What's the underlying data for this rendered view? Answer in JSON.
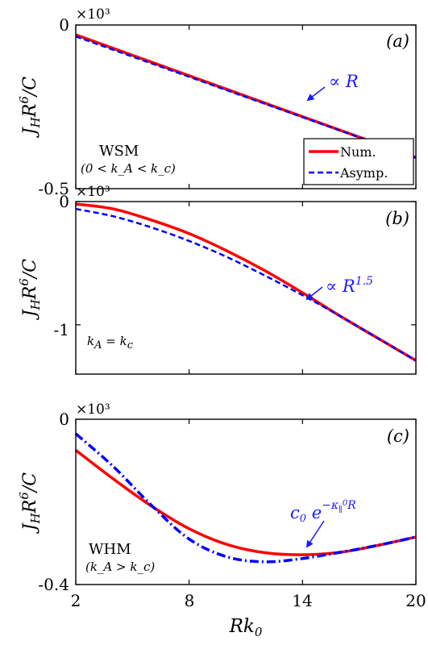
{
  "chart_data": [
    {
      "type": "line",
      "panel_label": "(a)",
      "ylabel": "J_H R^6 / C",
      "multiplier": "×10³",
      "ylim": [
        -0.5,
        0
      ],
      "yticks": [
        0,
        -0.5
      ],
      "ytick_labels": [
        "0",
        "-0.5"
      ],
      "xlim": [
        2,
        20
      ],
      "regime_label": "WSM",
      "regime_condition": "(0 < k_A < k_c)",
      "annotation": "∝ R",
      "legend": {
        "placement": "bottom-right",
        "entries": [
          "Num.",
          "Asymp."
        ]
      },
      "series": [
        {
          "name": "Num.",
          "style": "solid",
          "color": "#ff0000",
          "x": [
            2,
            20
          ],
          "y": [
            -0.03,
            -0.405
          ]
        },
        {
          "name": "Asymp.",
          "style": "dashed",
          "color": "#0000ff",
          "x": [
            2,
            20
          ],
          "y": [
            -0.035,
            -0.405
          ]
        }
      ]
    },
    {
      "type": "line",
      "panel_label": "(b)",
      "ylabel": "J_H R^6 / C",
      "multiplier": "×10³",
      "ylim": [
        -1.4,
        0
      ],
      "yticks": [
        0,
        -1
      ],
      "ytick_labels": [
        "0",
        "-1"
      ],
      "xlim": [
        2,
        20
      ],
      "regime_label": "k_A = k_c",
      "annotation": "∝ R^1.5",
      "series": [
        {
          "name": "Num.",
          "style": "solid",
          "color": "#ff0000",
          "x": [
            2,
            4,
            6,
            8,
            10,
            12,
            14,
            16,
            18,
            20
          ],
          "y": [
            -0.02,
            -0.06,
            -0.15,
            -0.26,
            -0.4,
            -0.56,
            -0.74,
            -0.93,
            -1.11,
            -1.29
          ]
        },
        {
          "name": "Asymp.",
          "style": "dashed",
          "color": "#0000ff",
          "x": [
            2,
            4,
            6,
            8,
            10,
            12,
            14,
            16,
            18,
            20
          ],
          "y": [
            -0.06,
            -0.12,
            -0.21,
            -0.32,
            -0.45,
            -0.6,
            -0.76,
            -0.93,
            -1.11,
            -1.29
          ]
        }
      ]
    },
    {
      "type": "line",
      "panel_label": "(c)",
      "ylabel": "J_H R^6 / C",
      "multiplier": "×10³",
      "ylim": [
        -0.4,
        0
      ],
      "yticks": [
        0,
        -0.4
      ],
      "ytick_labels": [
        "0",
        "-0.4"
      ],
      "xlim": [
        2,
        20
      ],
      "xticks": [
        2,
        8,
        14,
        20
      ],
      "xtick_labels": [
        "2",
        "8",
        "14",
        "20"
      ],
      "xlabel": "Rk_0",
      "regime_label": "WHM",
      "regime_condition": "(k_A > k_c)",
      "annotation": "c_0 e^(−κ∥⁰ R)",
      "series": [
        {
          "name": "Num.",
          "style": "solid",
          "color": "#ff0000",
          "x": [
            2,
            4,
            6,
            8,
            10,
            12,
            14,
            16,
            18,
            20
          ],
          "y": [
            -0.075,
            -0.145,
            -0.21,
            -0.265,
            -0.303,
            -0.323,
            -0.328,
            -0.322,
            -0.305,
            -0.285
          ]
        },
        {
          "name": "Asymp.",
          "style": "dash-dot",
          "color": "#0000ff",
          "x": [
            2,
            4,
            6,
            8,
            10,
            12,
            14,
            16,
            18,
            20
          ],
          "y": [
            -0.035,
            -0.115,
            -0.208,
            -0.29,
            -0.333,
            -0.345,
            -0.337,
            -0.322,
            -0.305,
            -0.285
          ]
        }
      ]
    }
  ]
}
